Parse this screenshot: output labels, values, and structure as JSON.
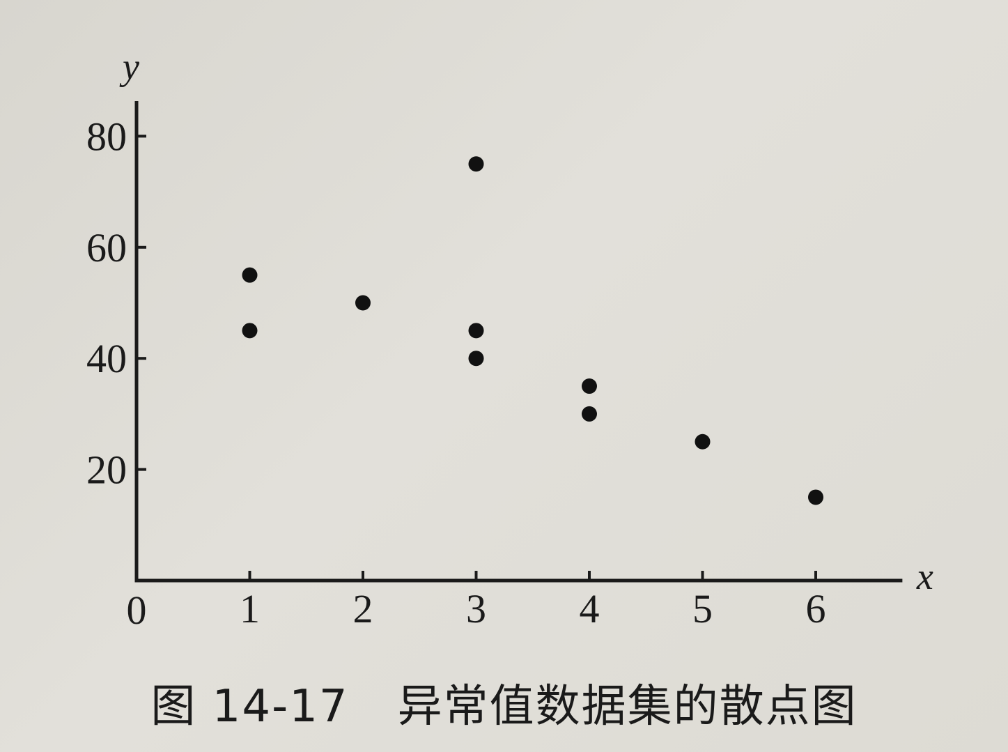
{
  "caption": {
    "figure_number": "图 14-17",
    "title": "异常值数据集的散点图"
  },
  "chart_data": {
    "type": "scatter",
    "title": "",
    "xlabel": "x",
    "ylabel": "y",
    "origin_label": "0",
    "xlim": [
      0,
      6.75
    ],
    "ylim": [
      0,
      85
    ],
    "x_ticks": [
      1,
      2,
      3,
      4,
      5,
      6
    ],
    "y_ticks": [
      20,
      40,
      60,
      80
    ],
    "grid": false,
    "legend": "none",
    "point_color": "#111111",
    "series": [
      {
        "x": [
          1,
          1,
          2,
          3,
          3,
          3,
          4,
          4,
          5,
          6
        ],
        "y": [
          55,
          45,
          50,
          75,
          45,
          40,
          35,
          30,
          25,
          15
        ]
      }
    ]
  }
}
